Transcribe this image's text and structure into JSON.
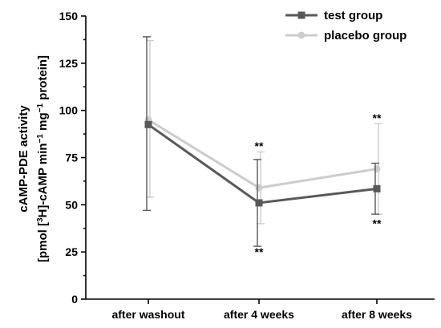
{
  "chart_data": {
    "type": "line",
    "categories": [
      "after washout",
      "after 4 weeks",
      "after 8 weeks"
    ],
    "ylabel_line1": "cAMP-PDE activity",
    "ylabel_line2_parts": [
      "[pmol [",
      "3",
      "H]-cAMP min",
      "−1",
      " mg",
      "−1",
      " protein]"
    ],
    "ylim": [
      0,
      150
    ],
    "yticks": [
      0,
      25,
      50,
      75,
      100,
      125,
      150
    ],
    "legend_position": "top-right",
    "series": [
      {
        "name": "test group",
        "color": "#595959",
        "marker": "square",
        "values": [
          92.5,
          51,
          58.5
        ],
        "err_low": [
          47,
          28,
          45
        ],
        "err_high": [
          139,
          74,
          72
        ]
      },
      {
        "name": "placebo group",
        "color": "#cccccc",
        "marker": "circle",
        "values": [
          95,
          59,
          69
        ],
        "err_low": [
          54,
          40,
          45
        ],
        "err_high": [
          137,
          78,
          93
        ]
      }
    ],
    "annotations": [
      {
        "category_index": 1,
        "text": "**",
        "y": 79
      },
      {
        "category_index": 1,
        "text": "**",
        "y": 23
      },
      {
        "category_index": 2,
        "text": "**",
        "y": 94
      },
      {
        "category_index": 2,
        "text": "**",
        "y": 38
      }
    ]
  }
}
